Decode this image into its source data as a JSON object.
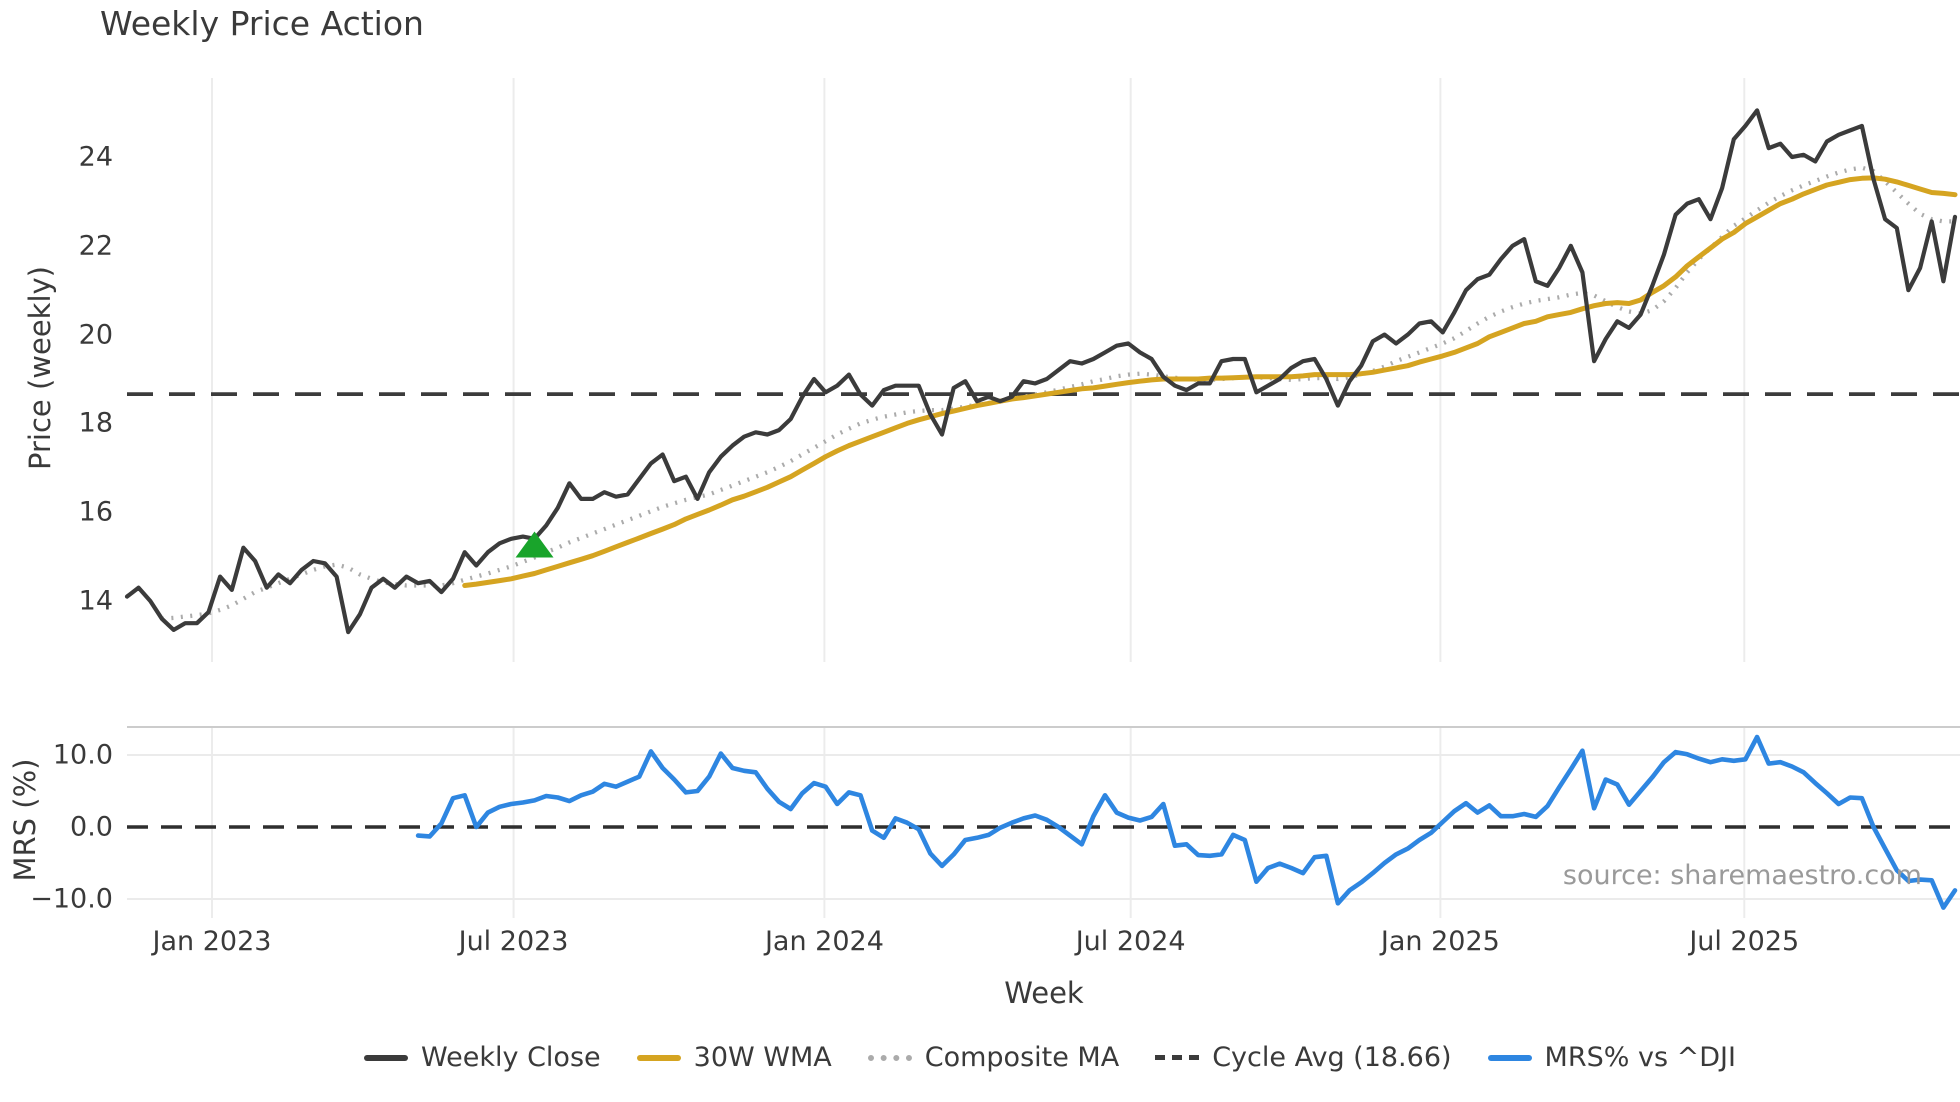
{
  "title": "Weekly Price Action",
  "source": "source: sharemaestro.com",
  "axes": {
    "price_label": "Price (weekly)",
    "mrs_label": "MRS (%)",
    "x_label": "Week",
    "price_ticks": [
      {
        "label": "24",
        "value": 24
      },
      {
        "label": "22",
        "value": 22
      },
      {
        "label": "20",
        "value": 20
      },
      {
        "label": "18",
        "value": 18
      },
      {
        "label": "16",
        "value": 16
      },
      {
        "label": "14",
        "value": 14
      }
    ],
    "mrs_ticks": [
      {
        "label": "10.0",
        "value": 10
      },
      {
        "label": "0.0",
        "value": 0
      },
      {
        "label": "−10.0",
        "value": -10
      }
    ],
    "x_ticks": [
      {
        "label": "Jan 2023",
        "week": 7.3
      },
      {
        "label": "Jul 2023",
        "week": 33.2
      },
      {
        "label": "Jan 2024",
        "week": 59.9
      },
      {
        "label": "Jul 2024",
        "week": 86.2
      },
      {
        "label": "Jan 2025",
        "week": 112.8
      },
      {
        "label": "Jul 2025",
        "week": 138.9
      }
    ]
  },
  "colors": {
    "close": "#3b3b3b",
    "wma": "#d5a421",
    "composite": "#ababab",
    "cycle": "#3b3b3b",
    "mrs": "#2e86e1",
    "marker": "#19a42b",
    "grid": "#ececec",
    "mrs_grid": "#ebebeb",
    "mrs_border": "#cccccc",
    "zero_line": "#2e2e2e",
    "text": "#3a3a3a",
    "source_text": "#9a9a9a"
  },
  "legend": [
    {
      "label": "Weekly Close",
      "swatch": "solid",
      "color": "#3b3b3b",
      "slug": "weekly-close"
    },
    {
      "label": "30W WMA",
      "swatch": "solid",
      "color": "#d5a421",
      "slug": "wma"
    },
    {
      "label": "Composite MA",
      "swatch": "dotted",
      "color": "#ababab",
      "slug": "composite-ma"
    },
    {
      "label": "Cycle Avg (18.66)",
      "swatch": "dashed",
      "color": "#3b3b3b",
      "slug": "cycle-avg"
    },
    {
      "label": "MRS% vs ^DJI",
      "swatch": "solid",
      "color": "#2e86e1",
      "slug": "mrs"
    }
  ],
  "chart_data": {
    "type": "line",
    "title": "Weekly Price Action",
    "x_unit": "week_index",
    "weeks_total": 158,
    "xlabel": "Week",
    "x_tick_labels": [
      "Jan 2023",
      "Jul 2023",
      "Jan 2024",
      "Jul 2024",
      "Jan 2025",
      "Jul 2025"
    ],
    "legend_position": "bottom",
    "grid": "vertical-both-panels, horizontal-only-mrs",
    "panels": [
      {
        "id": "price",
        "ylabel": "Price (weekly)",
        "ylim": [
          12.6,
          25.8
        ],
        "yticks": [
          14,
          16,
          18,
          20,
          22,
          24
        ],
        "cycle_avg": 18.66,
        "marker": {
          "shape": "triangle-up",
          "week": 35,
          "value": 15.25,
          "color": "#19a42b"
        },
        "series": [
          {
            "name": "Weekly Close",
            "style": "solid",
            "color": "#3b3b3b",
            "start_week": 0,
            "values": [
              14.1,
              14.3,
              14.0,
              13.6,
              13.35,
              13.5,
              13.5,
              13.75,
              14.55,
              14.25,
              15.2,
              14.9,
              14.3,
              14.6,
              14.4,
              14.7,
              14.9,
              14.85,
              14.55,
              13.3,
              13.7,
              14.3,
              14.5,
              14.3,
              14.55,
              14.4,
              14.45,
              14.2,
              14.5,
              15.1,
              14.8,
              15.1,
              15.3,
              15.4,
              15.45,
              15.4,
              15.7,
              16.1,
              16.65,
              16.3,
              16.3,
              16.45,
              16.35,
              16.4,
              16.75,
              17.1,
              17.3,
              16.7,
              16.8,
              16.3,
              16.9,
              17.25,
              17.5,
              17.7,
              17.8,
              17.75,
              17.85,
              18.1,
              18.6,
              19.0,
              18.7,
              18.85,
              19.1,
              18.65,
              18.4,
              18.75,
              18.85,
              18.85,
              18.85,
              18.2,
              17.75,
              18.8,
              18.95,
              18.5,
              18.6,
              18.5,
              18.6,
              18.95,
              18.9,
              19.0,
              19.2,
              19.4,
              19.35,
              19.45,
              19.6,
              19.75,
              19.8,
              19.6,
              19.45,
              19.05,
              18.85,
              18.75,
              18.9,
              18.9,
              19.4,
              19.45,
              19.45,
              18.7,
              18.85,
              19.0,
              19.25,
              19.4,
              19.45,
              19.0,
              18.4,
              18.95,
              19.3,
              19.85,
              20.0,
              19.8,
              20.0,
              20.25,
              20.3,
              20.05,
              20.5,
              21.0,
              21.25,
              21.35,
              21.7,
              22.0,
              22.15,
              21.2,
              21.1,
              21.5,
              22.0,
              21.4,
              19.4,
              19.9,
              20.3,
              20.15,
              20.45,
              21.1,
              21.8,
              22.7,
              22.95,
              23.05,
              22.6,
              23.3,
              24.4,
              24.7,
              25.05,
              24.2,
              24.3,
              24.0,
              24.05,
              23.9,
              24.35,
              24.5,
              24.6,
              24.7,
              23.5,
              22.6,
              22.4,
              21.0,
              21.5,
              22.55,
              21.2,
              22.65
            ]
          },
          {
            "name": "30W WMA",
            "style": "solid",
            "color": "#d5a421",
            "start_week": 29,
            "values": [
              14.35,
              14.38,
              14.42,
              14.46,
              14.5,
              14.56,
              14.62,
              14.7,
              14.78,
              14.86,
              14.94,
              15.02,
              15.12,
              15.22,
              15.32,
              15.42,
              15.52,
              15.62,
              15.72,
              15.85,
              15.95,
              16.05,
              16.16,
              16.28,
              16.36,
              16.46,
              16.56,
              16.68,
              16.8,
              16.95,
              17.1,
              17.25,
              17.38,
              17.5,
              17.6,
              17.7,
              17.8,
              17.9,
              18.0,
              18.08,
              18.15,
              18.22,
              18.28,
              18.34,
              18.4,
              18.45,
              18.5,
              18.55,
              18.58,
              18.62,
              18.66,
              18.7,
              18.74,
              18.78,
              18.8,
              18.84,
              18.88,
              18.92,
              18.95,
              18.98,
              19.0,
              19.0,
              19.0,
              19.0,
              19.02,
              19.02,
              19.03,
              19.04,
              19.05,
              19.05,
              19.05,
              19.05,
              19.07,
              19.1,
              19.1,
              19.1,
              19.1,
              19.12,
              19.15,
              19.2,
              19.25,
              19.3,
              19.38,
              19.45,
              19.52,
              19.6,
              19.7,
              19.8,
              19.95,
              20.05,
              20.15,
              20.25,
              20.3,
              20.4,
              20.45,
              20.5,
              20.58,
              20.65,
              20.7,
              20.72,
              20.7,
              20.78,
              20.95,
              21.1,
              21.3,
              21.55,
              21.75,
              21.95,
              22.15,
              22.3,
              22.5,
              22.65,
              22.8,
              22.95,
              23.05,
              23.17,
              23.27,
              23.37,
              23.43,
              23.49,
              23.52,
              23.53,
              23.5,
              23.44,
              23.36,
              23.28,
              23.2,
              23.18,
              23.15
            ]
          },
          {
            "name": "Composite MA",
            "style": "dotted",
            "color": "#ababab",
            "start_week": 3,
            "values": [
              13.6,
              13.62,
              13.65,
              13.68,
              13.72,
              13.8,
              13.9,
              14.05,
              14.2,
              14.3,
              14.4,
              14.5,
              14.6,
              14.7,
              14.78,
              14.82,
              14.75,
              14.6,
              14.5,
              14.42,
              14.38,
              14.35,
              14.35,
              14.35,
              14.35,
              14.4,
              14.48,
              14.55,
              14.62,
              14.7,
              14.78,
              14.88,
              14.98,
              15.1,
              15.2,
              15.32,
              15.42,
              15.52,
              15.62,
              15.72,
              15.82,
              15.92,
              16.02,
              16.12,
              16.2,
              16.28,
              16.34,
              16.4,
              16.5,
              16.6,
              16.7,
              16.8,
              16.9,
              17.02,
              17.15,
              17.3,
              17.45,
              17.6,
              17.75,
              17.88,
              18.0,
              18.08,
              18.15,
              18.2,
              18.25,
              18.28,
              18.3,
              18.3,
              18.33,
              18.38,
              18.42,
              18.46,
              18.5,
              18.55,
              18.6,
              18.65,
              18.7,
              18.76,
              18.82,
              18.88,
              18.95,
              19.0,
              19.06,
              19.1,
              19.12,
              19.1,
              19.06,
              19.03,
              19.0,
              18.98,
              18.98,
              19.0,
              19.02,
              19.04,
              19.04,
              19.02,
              19.0,
              18.98,
              19.0,
              19.02,
              19.02,
              19.0,
              19.04,
              19.1,
              19.18,
              19.28,
              19.4,
              19.5,
              19.6,
              19.7,
              19.8,
              19.92,
              20.08,
              20.25,
              20.4,
              20.52,
              20.62,
              20.7,
              20.76,
              20.8,
              20.84,
              20.9,
              20.94,
              20.88,
              20.75,
              20.62,
              20.52,
              20.47,
              20.55,
              20.75,
              21.05,
              21.4,
              21.7,
              21.95,
              22.2,
              22.45,
              22.62,
              22.8,
              22.97,
              23.12,
              23.25,
              23.36,
              23.46,
              23.56,
              23.65,
              23.72,
              23.76,
              23.68,
              23.45,
              23.2,
              22.95,
              22.72,
              22.6,
              22.55,
              22.55
            ]
          }
        ]
      },
      {
        "id": "mrs",
        "ylabel": "MRS (%)",
        "ylim": [
          -12.6,
          13.9
        ],
        "yticks": [
          -10,
          0,
          10
        ],
        "zero_line_dashed": true,
        "series": [
          {
            "name": "MRS% vs ^DJI",
            "style": "solid",
            "color": "#2e86e1",
            "start_week": 25,
            "values": [
              -1.2,
              -1.3,
              0.5,
              4.0,
              4.4,
              0.0,
              2.0,
              2.8,
              3.2,
              3.4,
              3.7,
              4.3,
              4.1,
              3.6,
              4.4,
              4.9,
              6.0,
              5.6,
              6.3,
              7.0,
              10.5,
              8.2,
              6.6,
              4.8,
              5.0,
              7.0,
              10.2,
              8.2,
              7.8,
              7.6,
              5.3,
              3.5,
              2.5,
              4.7,
              6.1,
              5.6,
              3.2,
              4.8,
              4.4,
              -0.5,
              -1.5,
              1.2,
              0.6,
              -0.3,
              -3.7,
              -5.4,
              -3.8,
              -1.8,
              -1.5,
              -1.1,
              -0.1,
              0.6,
              1.2,
              1.6,
              1.0,
              0.0,
              -1.2,
              -2.4,
              1.5,
              4.4,
              2.0,
              1.3,
              0.9,
              1.4,
              3.2,
              -2.6,
              -2.4,
              -3.9,
              -4.0,
              -3.8,
              -1.1,
              -1.8,
              -7.6,
              -5.7,
              -5.1,
              -5.7,
              -6.4,
              -4.2,
              -4.0,
              -10.6,
              -8.8,
              -7.7,
              -6.4,
              -5.0,
              -3.8,
              -3.0,
              -1.8,
              -0.8,
              0.7,
              2.2,
              3.3,
              2.0,
              3.0,
              1.5,
              1.5,
              1.8,
              1.4,
              2.9,
              5.5,
              8.0,
              10.6,
              2.6,
              6.6,
              5.9,
              3.1,
              5.0,
              6.9,
              9.0,
              10.4,
              10.1,
              9.5,
              9.0,
              9.4,
              9.2,
              9.4,
              12.5,
              8.8,
              9.0,
              8.4,
              7.6,
              6.1,
              4.7,
              3.2,
              4.1,
              4.0,
              0.0,
              -3.0,
              -6.0,
              -7.5,
              -7.3,
              -7.4,
              -11.2,
              -8.8
            ]
          }
        ]
      }
    ]
  }
}
